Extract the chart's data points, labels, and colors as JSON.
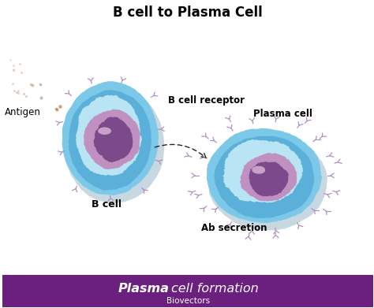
{
  "title": "B cell to Plasma Cell",
  "footer_text": "Plasma cell formation",
  "footer_sub": "Biovectors",
  "footer_bg": "#6b2080",
  "footer_text_color": "#ffffff",
  "bg_color": "#ffffff",
  "label_antigen": "Antigen",
  "label_b_receptor": "B cell receptor",
  "label_b_cell": "B cell",
  "label_plasma_cell": "Plasma cell",
  "label_ab": "Ab secretion",
  "cell_outer_color": "#7cc8e8",
  "cell_mid_color": "#5ab0d8",
  "cell_inner_light": "#b8e4f4",
  "nucleus_outer_color": "#c090c0",
  "nucleus_inner_color": "#7a4a8a",
  "nucleus_highlight": "#a870a8",
  "receptor_color": "#b090c0",
  "antigen_color": "#b89070",
  "arrow_color": "#222222",
  "shadow_color": "#c8d8e0"
}
